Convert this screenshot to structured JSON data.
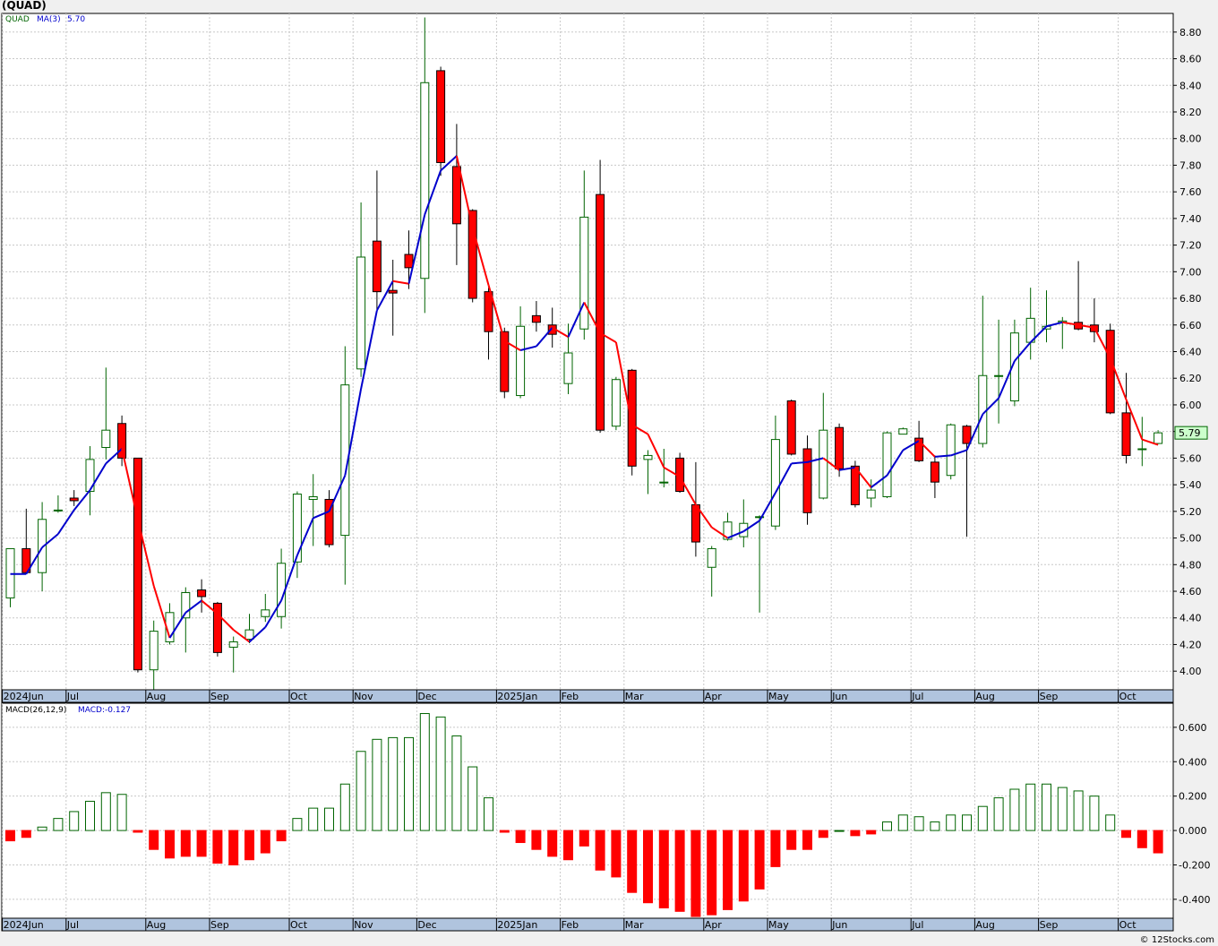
{
  "header": {
    "title": "(QUAD)",
    "credit": "© 12Stocks.com"
  },
  "colors": {
    "up": "#006400",
    "down": "#ff0000",
    "ma_up": "#0000cc",
    "ma_down": "#ff0000",
    "grid": "#c8c8c8",
    "band": "#b0c4de"
  },
  "chart_data": [
    {
      "type": "candlestick",
      "legend": {
        "symbol": "QUAD",
        "ma_label": "MA(3)",
        "ma_value": "5.70"
      },
      "last_price": "5.79",
      "ylim": [
        3.86,
        8.94
      ],
      "y_ticks": [
        "4.00",
        "4.20",
        "4.40",
        "4.60",
        "4.80",
        "5.00",
        "5.20",
        "5.40",
        "5.60",
        "5.80",
        "6.00",
        "6.20",
        "6.40",
        "6.60",
        "6.80",
        "7.00",
        "7.20",
        "7.40",
        "7.60",
        "7.80",
        "8.00",
        "8.20",
        "8.40",
        "8.60",
        "8.80"
      ],
      "x_labels": [
        {
          "i": 0,
          "t": "2024Jun"
        },
        {
          "i": 4,
          "t": "Jul"
        },
        {
          "i": 9,
          "t": "Aug"
        },
        {
          "i": 13,
          "t": "Sep"
        },
        {
          "i": 18,
          "t": "Oct"
        },
        {
          "i": 22,
          "t": "Nov"
        },
        {
          "i": 26,
          "t": "Dec"
        },
        {
          "i": 31,
          "t": "2025Jan"
        },
        {
          "i": 35,
          "t": "Feb"
        },
        {
          "i": 39,
          "t": "Mar"
        },
        {
          "i": 44,
          "t": "Apr"
        },
        {
          "i": 48,
          "t": "May"
        },
        {
          "i": 52,
          "t": "Jun"
        },
        {
          "i": 57,
          "t": "Jul"
        },
        {
          "i": 61,
          "t": "Aug"
        },
        {
          "i": 65,
          "t": "Sep"
        },
        {
          "i": 70,
          "t": "Oct"
        }
      ],
      "candles": [
        [
          4.55,
          4.92,
          4.48,
          4.92
        ],
        [
          4.92,
          4.74,
          4.73,
          5.22
        ],
        [
          4.74,
          5.14,
          4.6,
          5.27
        ],
        [
          5.21,
          5.21,
          5.19,
          5.32
        ],
        [
          5.3,
          5.28,
          5.24,
          5.36
        ],
        [
          5.35,
          5.59,
          5.17,
          5.69
        ],
        [
          5.68,
          5.81,
          5.59,
          6.28
        ],
        [
          5.86,
          5.6,
          5.54,
          5.92
        ],
        [
          5.6,
          4.01,
          3.99,
          5.6
        ],
        [
          4.01,
          4.3,
          3.86,
          4.38
        ],
        [
          4.22,
          4.44,
          4.2,
          4.51
        ],
        [
          4.4,
          4.59,
          4.14,
          4.63
        ],
        [
          4.61,
          4.56,
          4.44,
          4.69
        ],
        [
          4.51,
          4.14,
          4.11,
          4.52
        ],
        [
          4.18,
          4.22,
          3.99,
          4.26
        ],
        [
          4.24,
          4.31,
          4.21,
          4.43
        ],
        [
          4.41,
          4.46,
          4.37,
          4.58
        ],
        [
          4.41,
          4.81,
          4.32,
          4.92
        ],
        [
          4.82,
          5.33,
          4.7,
          5.35
        ],
        [
          5.29,
          5.31,
          4.94,
          5.48
        ],
        [
          5.29,
          4.95,
          4.93,
          5.36
        ],
        [
          5.02,
          6.15,
          4.65,
          6.44
        ],
        [
          6.27,
          7.11,
          6.21,
          7.52
        ],
        [
          7.23,
          6.85,
          6.72,
          7.76
        ],
        [
          6.86,
          6.84,
          6.52,
          7.09
        ],
        [
          7.13,
          7.03,
          6.87,
          7.31
        ],
        [
          6.95,
          8.42,
          6.69,
          8.91
        ],
        [
          8.51,
          7.82,
          7.72,
          8.54
        ],
        [
          7.79,
          7.36,
          7.05,
          8.11
        ],
        [
          7.46,
          6.8,
          6.77,
          7.47
        ],
        [
          6.85,
          6.55,
          6.34,
          6.88
        ],
        [
          6.55,
          6.1,
          6.05,
          6.58
        ],
        [
          6.07,
          6.59,
          6.05,
          6.74
        ],
        [
          6.67,
          6.62,
          6.55,
          6.78
        ],
        [
          6.6,
          6.53,
          6.43,
          6.73
        ],
        [
          6.16,
          6.39,
          6.08,
          6.61
        ],
        [
          6.57,
          7.41,
          6.49,
          7.76
        ],
        [
          7.58,
          5.81,
          5.79,
          7.84
        ],
        [
          5.84,
          6.19,
          5.81,
          6.21
        ],
        [
          6.26,
          5.54,
          5.47,
          6.27
        ],
        [
          5.59,
          5.62,
          5.33,
          5.66
        ],
        [
          5.42,
          5.42,
          5.38,
          5.67
        ],
        [
          5.6,
          5.35,
          5.34,
          5.64
        ],
        [
          5.25,
          4.97,
          4.86,
          5.57
        ],
        [
          4.78,
          4.92,
          4.56,
          4.94
        ],
        [
          4.99,
          5.12,
          4.98,
          5.19
        ],
        [
          5.01,
          5.11,
          4.93,
          5.29
        ],
        [
          5.16,
          5.16,
          4.44,
          5.17
        ],
        [
          5.09,
          5.74,
          5.06,
          5.92
        ],
        [
          6.03,
          5.63,
          5.62,
          6.04
        ],
        [
          5.67,
          5.19,
          5.1,
          5.77
        ],
        [
          5.3,
          5.81,
          5.29,
          6.09
        ],
        [
          5.83,
          5.52,
          5.46,
          5.86
        ],
        [
          5.54,
          5.25,
          5.23,
          5.58
        ],
        [
          5.3,
          5.36,
          5.23,
          5.44
        ],
        [
          5.31,
          5.79,
          5.3,
          5.8
        ],
        [
          5.78,
          5.82,
          5.79,
          5.83
        ],
        [
          5.75,
          5.58,
          5.57,
          5.88
        ],
        [
          5.57,
          5.42,
          5.3,
          5.62
        ],
        [
          5.47,
          5.85,
          5.44,
          5.86
        ],
        [
          5.84,
          5.71,
          5.01,
          5.85
        ],
        [
          5.71,
          6.22,
          5.68,
          6.82
        ],
        [
          6.22,
          6.22,
          5.86,
          6.64
        ],
        [
          6.03,
          6.54,
          5.99,
          6.64
        ],
        [
          6.47,
          6.65,
          6.34,
          6.88
        ],
        [
          6.57,
          6.59,
          6.47,
          6.86
        ],
        [
          6.62,
          6.63,
          6.42,
          6.66
        ],
        [
          6.62,
          6.57,
          6.56,
          7.08
        ],
        [
          6.6,
          6.55,
          6.47,
          6.8
        ],
        [
          6.56,
          5.94,
          5.93,
          6.61
        ],
        [
          5.94,
          5.62,
          5.56,
          6.24
        ],
        [
          5.67,
          5.67,
          5.54,
          5.91
        ],
        [
          5.71,
          5.79,
          5.71,
          5.81
        ]
      ],
      "ma": [
        4.73,
        4.73,
        4.93,
        5.03,
        5.21,
        5.36,
        5.56,
        5.67,
        5.14,
        4.64,
        4.25,
        4.44,
        4.53,
        4.43,
        4.31,
        4.22,
        4.33,
        4.53,
        4.87,
        5.15,
        5.2,
        5.47,
        6.12,
        6.71,
        6.93,
        6.91,
        7.43,
        7.76,
        7.87,
        7.33,
        6.9,
        6.48,
        6.41,
        6.44,
        6.58,
        6.51,
        6.77,
        6.54,
        6.47,
        5.85,
        5.78,
        5.53,
        5.46,
        5.25,
        5.08,
        5.0,
        5.05,
        5.13,
        5.34,
        5.56,
        5.57,
        5.6,
        5.51,
        5.53,
        5.38,
        5.47,
        5.66,
        5.73,
        5.61,
        5.62,
        5.66,
        5.93,
        6.05,
        6.33,
        6.47,
        6.59,
        6.62,
        6.6,
        6.58,
        6.35,
        6.04,
        5.74,
        5.7
      ]
    },
    {
      "type": "bar",
      "legend": {
        "label": "MACD(26,12,9)",
        "value_label": "MACD:-0.127"
      },
      "ylim": [
        -0.51,
        0.74
      ],
      "y_ticks": [
        "-0.400",
        "-0.200",
        "0.000",
        "0.200",
        "0.400",
        "0.600"
      ],
      "values": [
        -0.06,
        -0.04,
        0.02,
        0.07,
        0.11,
        0.17,
        0.22,
        0.21,
        -0.01,
        -0.11,
        -0.16,
        -0.15,
        -0.15,
        -0.19,
        -0.2,
        -0.17,
        -0.13,
        -0.06,
        0.07,
        0.13,
        0.13,
        0.27,
        0.46,
        0.53,
        0.54,
        0.54,
        0.68,
        0.66,
        0.55,
        0.37,
        0.19,
        -0.01,
        -0.07,
        -0.11,
        -0.15,
        -0.17,
        -0.09,
        -0.23,
        -0.27,
        -0.36,
        -0.42,
        -0.45,
        -0.47,
        -0.5,
        -0.49,
        -0.46,
        -0.41,
        -0.34,
        -0.21,
        -0.11,
        -0.11,
        -0.04,
        0.0,
        -0.03,
        -0.02,
        0.05,
        0.09,
        0.08,
        0.05,
        0.09,
        0.09,
        0.14,
        0.19,
        0.24,
        0.27,
        0.27,
        0.25,
        0.23,
        0.2,
        0.09,
        -0.04,
        -0.1,
        -0.13
      ]
    }
  ]
}
